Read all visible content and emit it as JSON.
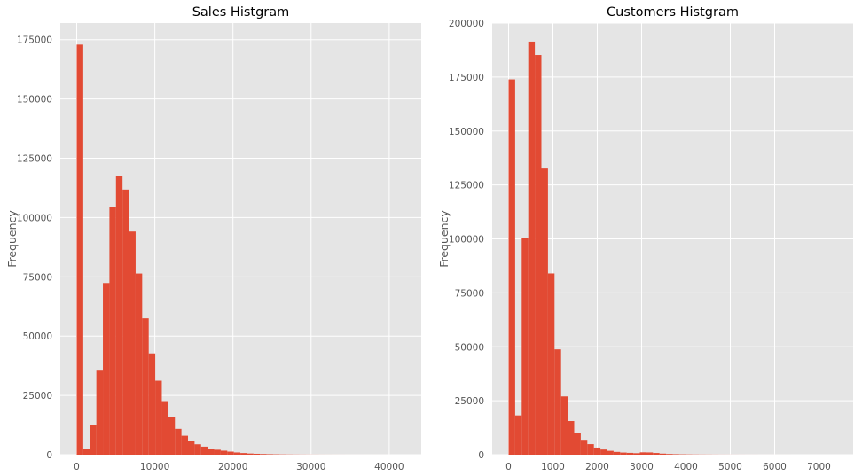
{
  "chart_data": [
    {
      "type": "bar",
      "title": "Sales Histgram",
      "xlabel": "",
      "ylabel": "Frequency",
      "xlim": [
        -2100,
        44100
      ],
      "ylim": [
        0,
        182000
      ],
      "xticks": [
        0,
        10000,
        20000,
        30000,
        40000
      ],
      "yticks": [
        0,
        25000,
        50000,
        75000,
        100000,
        125000,
        150000,
        175000
      ],
      "bin_width": 838,
      "bin_start": 0,
      "values": [
        172900,
        2300,
        12400,
        35800,
        72400,
        104500,
        117500,
        111800,
        94100,
        76400,
        57500,
        42700,
        31200,
        22600,
        15800,
        10900,
        8000,
        5800,
        4400,
        3400,
        2600,
        2100,
        1700,
        1300,
        950,
        700,
        500,
        380,
        280,
        200,
        150,
        110,
        80,
        60,
        45,
        35,
        25,
        18,
        14,
        10,
        8,
        6,
        5,
        4,
        3,
        3,
        2,
        2,
        1,
        1
      ],
      "grid": true,
      "color": "#e24a33",
      "background": "#e5e5e5"
    },
    {
      "type": "bar",
      "title": "Customers Histgram",
      "xlabel": "",
      "ylabel": "Frequency",
      "xlim": [
        -370,
        7770
      ],
      "ylim": [
        0,
        200000
      ],
      "xticks": [
        0,
        1000,
        2000,
        3000,
        4000,
        5000,
        6000,
        7000
      ],
      "yticks": [
        0,
        25000,
        50000,
        75000,
        100000,
        125000,
        150000,
        175000,
        200000
      ],
      "bin_width": 148,
      "bin_start": 0,
      "values": [
        173900,
        18200,
        100300,
        191400,
        185200,
        132600,
        84000,
        48800,
        27000,
        15600,
        10100,
        6900,
        4900,
        3300,
        2400,
        1800,
        1300,
        1000,
        850,
        700,
        1100,
        1050,
        800,
        500,
        320,
        220,
        160,
        120,
        90,
        70,
        55,
        40,
        30,
        25,
        18,
        14,
        10,
        8,
        6,
        5,
        4,
        3,
        3,
        2,
        2,
        1,
        1,
        1,
        1,
        1
      ],
      "grid": true,
      "color": "#e24a33",
      "background": "#e5e5e5"
    }
  ]
}
